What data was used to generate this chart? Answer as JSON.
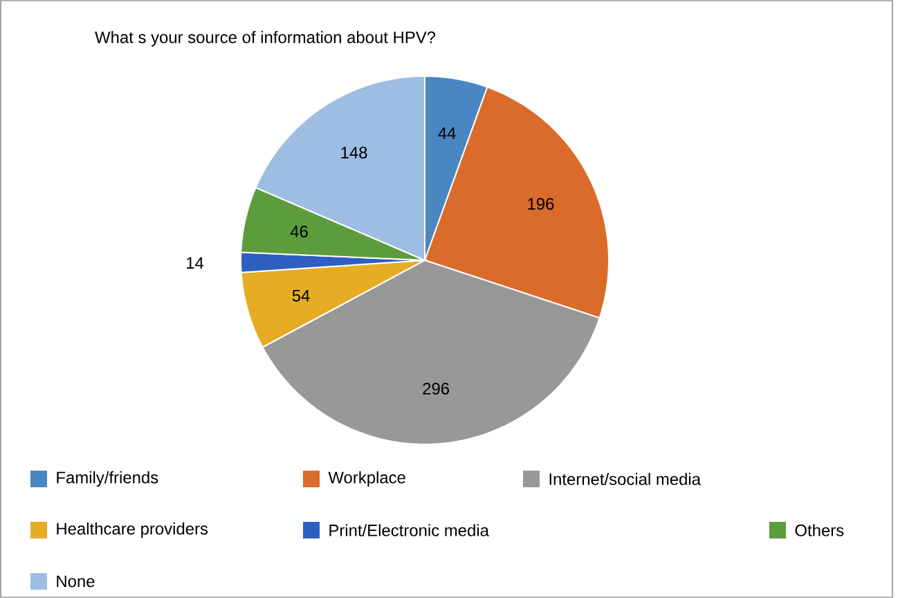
{
  "chart_data": {
    "type": "pie",
    "title": "What s your source of information about HPV?",
    "categories": [
      "Family/friends",
      "Workplace",
      "Internet/social media",
      "Healthcare providers",
      "Print/Electronic media",
      "Others",
      "None"
    ],
    "values": [
      44,
      196,
      296,
      54,
      14,
      46,
      148
    ],
    "colors": [
      "#4a86c1",
      "#db6b2a",
      "#989898",
      "#e6ad24",
      "#2f5ec2",
      "#5c9c3c",
      "#9dbde2"
    ],
    "data_labels": true,
    "legend": "bottom"
  }
}
